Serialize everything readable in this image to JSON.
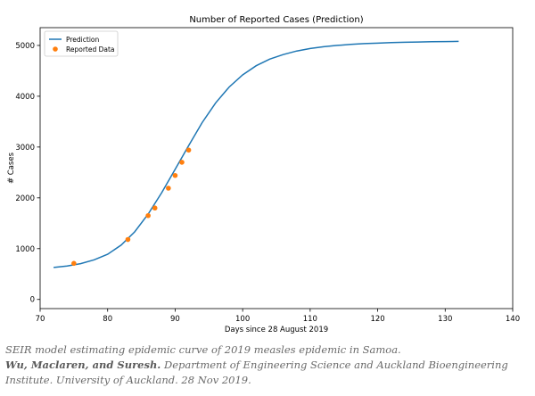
{
  "chart_data": {
    "type": "line",
    "title": "Number of Reported Cases (Prediction)",
    "xlabel": "Days since 28 August 2019",
    "ylabel": "# Cases",
    "xlim": [
      70,
      140
    ],
    "ylim": [
      -180,
      5350
    ],
    "xticks": [
      70,
      80,
      90,
      100,
      110,
      120,
      130,
      140
    ],
    "yticks": [
      0,
      1000,
      2000,
      3000,
      4000,
      5000
    ],
    "grid": false,
    "legend_position": "top-left",
    "series": [
      {
        "name": "Prediction",
        "kind": "line",
        "color": "#1f77b4",
        "x": [
          72,
          74,
          76,
          78,
          80,
          82,
          84,
          86,
          88,
          90,
          92,
          94,
          96,
          98,
          100,
          102,
          104,
          106,
          108,
          110,
          112,
          114,
          116,
          118,
          120,
          122,
          124,
          126,
          128,
          130,
          132
        ],
        "values": [
          630,
          660,
          705,
          780,
          890,
          1070,
          1330,
          1680,
          2100,
          2560,
          3030,
          3480,
          3870,
          4180,
          4420,
          4600,
          4730,
          4820,
          4890,
          4940,
          4975,
          5000,
          5020,
          5035,
          5045,
          5055,
          5062,
          5068,
          5073,
          5077,
          5080
        ]
      },
      {
        "name": "Reported Data",
        "kind": "scatter",
        "color": "#ff7f0e",
        "x": [
          75,
          83,
          86,
          87,
          89,
          90,
          91,
          92
        ],
        "values": [
          710,
          1180,
          1650,
          1800,
          2190,
          2440,
          2700,
          2940
        ]
      }
    ]
  },
  "caption": {
    "line1": "SEIR model estimating epidemic curve of 2019 measles epidemic in Samoa.",
    "authors": "Wu, Maclaren, and Suresh.",
    "line2_rest": " Department of Engineering Science and Auckland Bioengineering Institute. University of Auckland. 28 Nov 2019."
  }
}
